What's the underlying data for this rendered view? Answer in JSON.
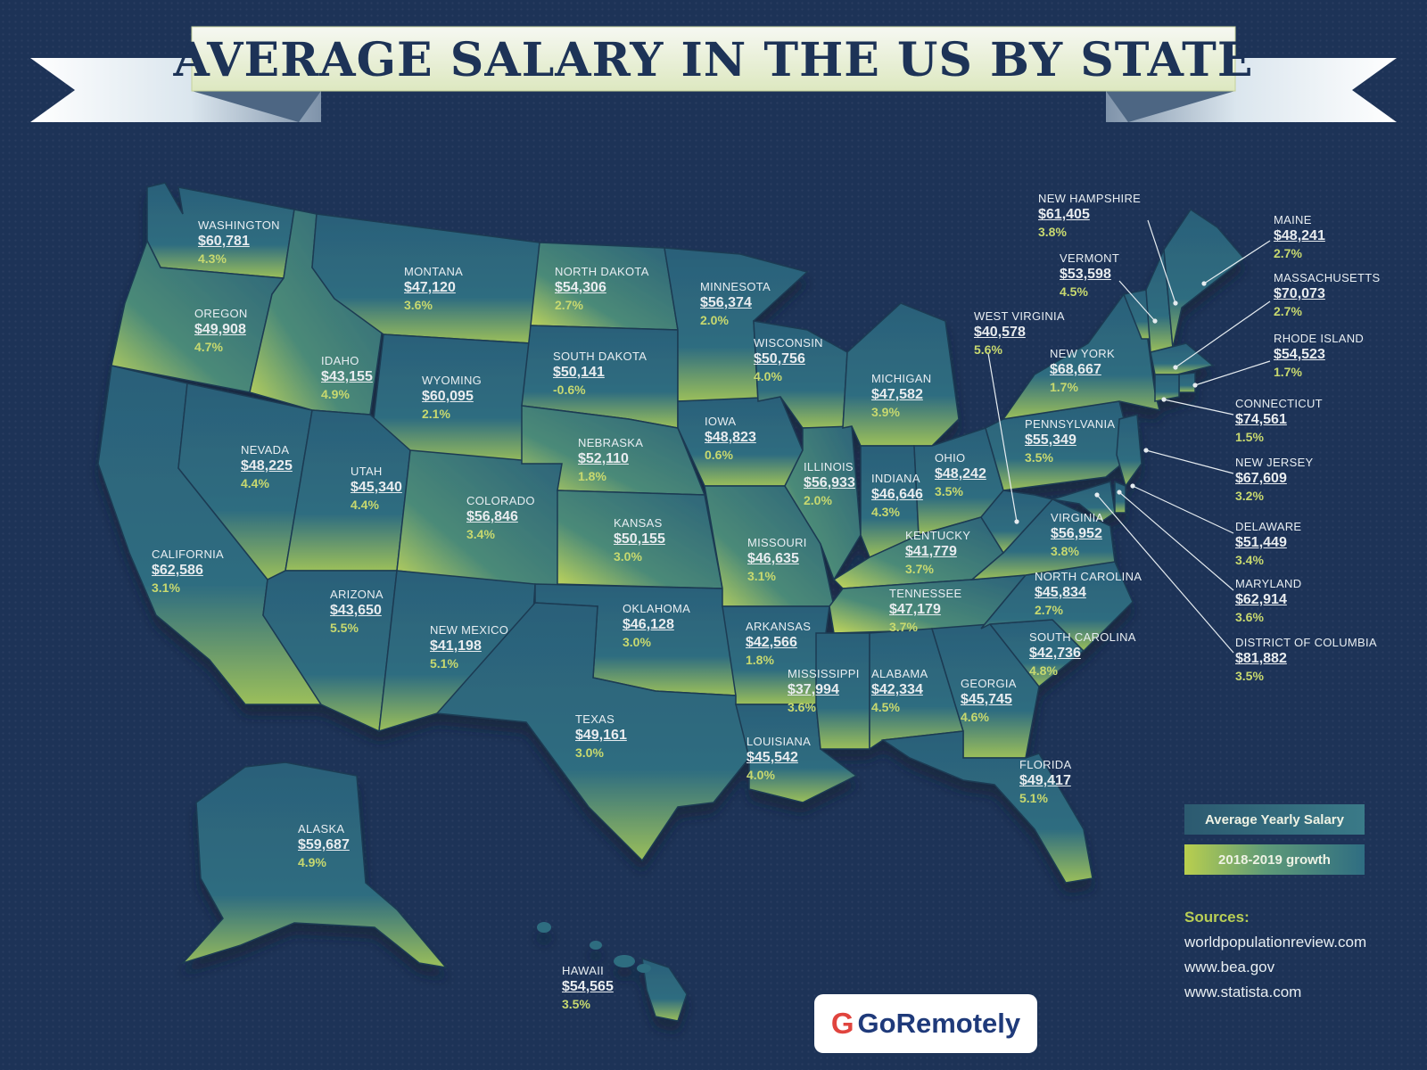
{
  "title": "AVERAGE SALARY IN THE US BY STATE",
  "colors": {
    "background": "#1d3357",
    "state_fill": "#2e6a80",
    "growth_accent": "#c2d85a",
    "border": "#1b3a52"
  },
  "states": [
    {
      "id": "washington",
      "name": "WASHINGTON",
      "salary": "$60,781",
      "growth": "4.3%"
    },
    {
      "id": "oregon",
      "name": "OREGON",
      "salary": "$49,908",
      "growth": "4.7%"
    },
    {
      "id": "california",
      "name": "CALIFORNIA",
      "salary": "$62,586",
      "growth": "3.1%"
    },
    {
      "id": "nevada",
      "name": "NEVADA",
      "salary": "$48,225",
      "growth": "4.4%"
    },
    {
      "id": "idaho",
      "name": "IDAHO",
      "salary": "$43,155",
      "growth": "4.9%"
    },
    {
      "id": "montana",
      "name": "MONTANA",
      "salary": "$47,120",
      "growth": "3.6%"
    },
    {
      "id": "wyoming",
      "name": "WYOMING",
      "salary": "$60,095",
      "growth": "2.1%"
    },
    {
      "id": "utah",
      "name": "UTAH",
      "salary": "$45,340",
      "growth": "4.4%"
    },
    {
      "id": "arizona",
      "name": "ARIZONA",
      "salary": "$43,650",
      "growth": "5.5%"
    },
    {
      "id": "colorado",
      "name": "COLORADO",
      "salary": "$56,846",
      "growth": "3.4%"
    },
    {
      "id": "new_mexico",
      "name": "NEW MEXICO",
      "salary": "$41,198",
      "growth": "5.1%"
    },
    {
      "id": "north_dakota",
      "name": "NORTH DAKOTA",
      "salary": "$54,306",
      "growth": "2.7%"
    },
    {
      "id": "south_dakota",
      "name": "SOUTH DAKOTA",
      "salary": "$50,141",
      "growth": "-0.6%"
    },
    {
      "id": "nebraska",
      "name": "NEBRASKA",
      "salary": "$52,110",
      "growth": "1.8%"
    },
    {
      "id": "kansas",
      "name": "KANSAS",
      "salary": "$50,155",
      "growth": "3.0%"
    },
    {
      "id": "oklahoma",
      "name": "OKLAHOMA",
      "salary": "$46,128",
      "growth": "3.0%"
    },
    {
      "id": "texas",
      "name": "TEXAS",
      "salary": "$49,161",
      "growth": "3.0%"
    },
    {
      "id": "minnesota",
      "name": "MINNESOTA",
      "salary": "$56,374",
      "growth": "2.0%"
    },
    {
      "id": "iowa",
      "name": "IOWA",
      "salary": "$48,823",
      "growth": "0.6%"
    },
    {
      "id": "missouri",
      "name": "MISSOURI",
      "salary": "$46,635",
      "growth": "3.1%"
    },
    {
      "id": "arkansas",
      "name": "ARKANSAS",
      "salary": "$42,566",
      "growth": "1.8%"
    },
    {
      "id": "louisiana",
      "name": "LOUISIANA",
      "salary": "$45,542",
      "growth": "4.0%"
    },
    {
      "id": "wisconsin",
      "name": "WISCONSIN",
      "salary": "$50,756",
      "growth": "4.0%"
    },
    {
      "id": "illinois",
      "name": "ILLINOIS",
      "salary": "$56,933",
      "growth": "2.0%"
    },
    {
      "id": "michigan",
      "name": "MICHIGAN",
      "salary": "$47,582",
      "growth": "3.9%"
    },
    {
      "id": "indiana",
      "name": "INDIANA",
      "salary": "$46,646",
      "growth": "4.3%"
    },
    {
      "id": "ohio",
      "name": "OHIO",
      "salary": "$48,242",
      "growth": "3.5%"
    },
    {
      "id": "kentucky",
      "name": "KENTUCKY",
      "salary": "$41,779",
      "growth": "3.7%"
    },
    {
      "id": "tennessee",
      "name": "TENNESSEE",
      "salary": "$47,179",
      "growth": "3.7%"
    },
    {
      "id": "mississippi",
      "name": "MISSISSIPPI",
      "salary": "$37,994",
      "growth": "3.6%"
    },
    {
      "id": "alabama",
      "name": "ALABAMA",
      "salary": "$42,334",
      "growth": "4.5%"
    },
    {
      "id": "georgia",
      "name": "GEORGIA",
      "salary": "$45,745",
      "growth": "4.6%"
    },
    {
      "id": "florida",
      "name": "FLORIDA",
      "salary": "$49,417",
      "growth": "5.1%"
    },
    {
      "id": "south_carolina",
      "name": "SOUTH CAROLINA",
      "salary": "$42,736",
      "growth": "4.8%"
    },
    {
      "id": "north_carolina",
      "name": "NORTH CAROLINA",
      "salary": "$45,834",
      "growth": "2.7%"
    },
    {
      "id": "virginia",
      "name": "VIRGINIA",
      "salary": "$56,952",
      "growth": "3.8%"
    },
    {
      "id": "west_virginia",
      "name": "WEST VIRGINIA",
      "salary": "$40,578",
      "growth": "5.6%"
    },
    {
      "id": "pennsylvania",
      "name": "PENNSYLVANIA",
      "salary": "$55,349",
      "growth": "3.5%"
    },
    {
      "id": "new_york",
      "name": "NEW YORK",
      "salary": "$68,667",
      "growth": "1.7%"
    },
    {
      "id": "vermont",
      "name": "VERMONT",
      "salary": "$53,598",
      "growth": "4.5%"
    },
    {
      "id": "new_hampshire",
      "name": "NEW HAMPSHIRE",
      "salary": "$61,405",
      "growth": "3.8%"
    },
    {
      "id": "maine",
      "name": "MAINE",
      "salary": "$48,241",
      "growth": "2.7%"
    },
    {
      "id": "massachusetts",
      "name": "MASSACHUSETTS",
      "salary": "$70,073",
      "growth": "2.7%"
    },
    {
      "id": "rhode_island",
      "name": "RHODE ISLAND",
      "salary": "$54,523",
      "growth": "1.7%"
    },
    {
      "id": "connecticut",
      "name": "CONNECTICUT",
      "salary": "$74,561",
      "growth": "1.5%"
    },
    {
      "id": "new_jersey",
      "name": "NEW JERSEY",
      "salary": "$67,609",
      "growth": "3.2%"
    },
    {
      "id": "delaware",
      "name": "DELAWARE",
      "salary": "$51,449",
      "growth": "3.4%"
    },
    {
      "id": "maryland",
      "name": "MARYLAND",
      "salary": "$62,914",
      "growth": "3.6%"
    },
    {
      "id": "district_of_columbia",
      "name": "DISTRICT OF COLUMBIA",
      "salary": "$81,882",
      "growth": "3.5%"
    },
    {
      "id": "alaska",
      "name": "ALASKA",
      "salary": "$59,687",
      "growth": "4.9%"
    },
    {
      "id": "hawaii",
      "name": "HAWAII",
      "salary": "$54,565",
      "growth": "3.5%"
    }
  ],
  "legend": {
    "salary": "Average Yearly Salary",
    "growth": "2018-2019 growth"
  },
  "sources": {
    "title": "Sources:",
    "items": [
      "worldpopulationreview.com",
      "www.bea.gov",
      "www.statista.com"
    ]
  },
  "logo": {
    "mark": "G",
    "text": "GoRemotely"
  }
}
